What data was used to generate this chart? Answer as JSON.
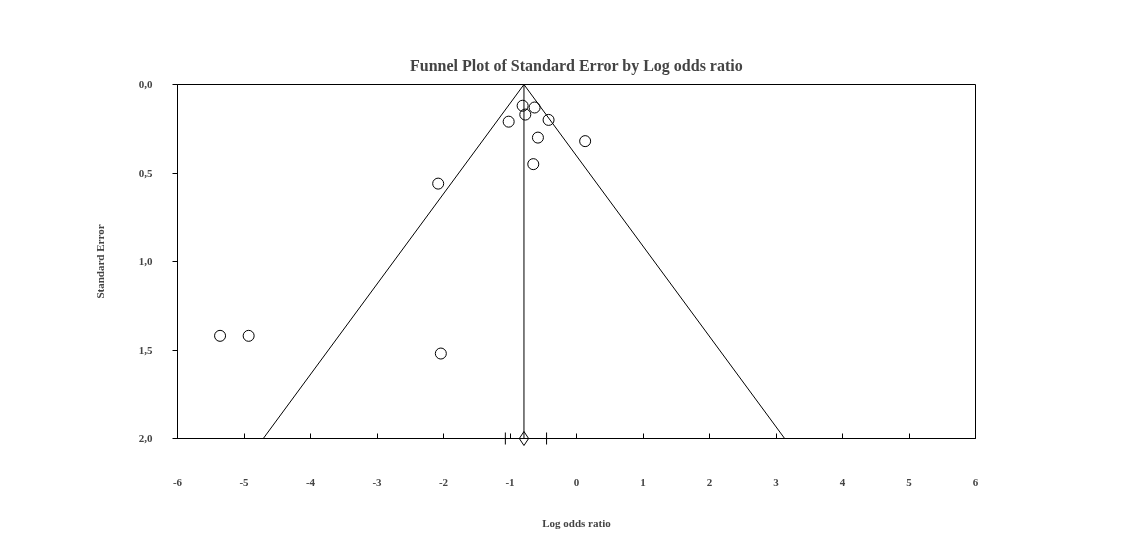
{
  "chart_data": {
    "type": "scatter",
    "title": "Funnel Plot of Standard Error by Log odds ratio",
    "xlabel": "Log odds ratio",
    "ylabel": "Standard Error",
    "series": [
      {
        "marker": "circle",
        "color": "#000000",
        "x": [
          -0.81,
          -0.63,
          -0.77,
          -1.02,
          -0.42,
          -0.58,
          0.13,
          -0.65,
          -2.08,
          -5.36,
          -4.93,
          -2.04
        ],
        "values": [
          0.12,
          0.13,
          0.17,
          0.21,
          0.2,
          0.3,
          0.32,
          0.45,
          0.56,
          1.42,
          1.42,
          1.52
        ]
      },
      {
        "type": "line",
        "marker": "none",
        "color": "#000000",
        "x": [
          -4.71,
          -0.79,
          3.13
        ],
        "values": [
          2.0,
          0.0,
          2.0
        ]
      },
      {
        "type": "scatter",
        "marker": "diamond",
        "color": "#000000",
        "x": [
          -0.79
        ],
        "values": [
          2.0
        ],
        "xerrors": [
          [
            -1.07,
            -0.45
          ]
        ]
      }
    ],
    "ref_lines": [
      {
        "axis": "x",
        "value": -0.79,
        "color": "#000000"
      }
    ],
    "xlim": [
      -6,
      6
    ],
    "xticks": [
      -6,
      -5,
      -4,
      -3,
      -2,
      -1,
      0,
      1,
      2,
      3,
      4,
      5,
      6
    ],
    "ylim": [
      2.0,
      0.0
    ],
    "yticks": [
      {
        "value": 0,
        "label": "0,0"
      },
      {
        "value": 0.5,
        "label": "0,5"
      },
      {
        "value": 1.0,
        "label": "1,0"
      },
      {
        "value": 1.5,
        "label": "1,5"
      },
      {
        "value": 2.0,
        "label": "2,0"
      }
    ],
    "grid": false
  }
}
